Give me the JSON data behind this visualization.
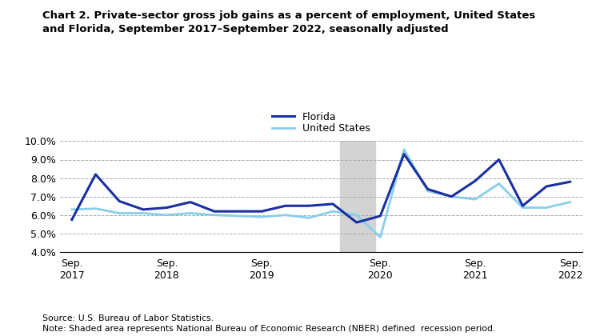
{
  "title": "Chart 2. Private-sector gross job gains as a percent of employment, United States\nand Florida, September 2017–September 2022, seasonally adjusted",
  "florida_x": [
    0,
    1,
    2,
    3,
    4,
    5,
    6,
    7,
    8,
    9,
    10,
    11,
    12,
    13,
    14,
    15,
    16,
    17,
    18,
    19,
    20,
    21
  ],
  "florida_y": [
    5.75,
    8.2,
    6.75,
    6.3,
    6.4,
    6.7,
    6.2,
    6.2,
    6.2,
    6.5,
    6.5,
    6.6,
    5.6,
    5.95,
    9.3,
    7.4,
    7.0,
    7.85,
    9.0,
    6.5,
    7.55,
    7.8
  ],
  "us_x": [
    0,
    1,
    2,
    3,
    4,
    5,
    6,
    7,
    8,
    9,
    10,
    11,
    12,
    13,
    14,
    15,
    16,
    17,
    18,
    19,
    20,
    21
  ],
  "us_y": [
    6.3,
    6.35,
    6.1,
    6.1,
    6.0,
    6.1,
    6.0,
    5.95,
    5.9,
    6.0,
    5.85,
    6.2,
    6.0,
    4.8,
    9.55,
    7.3,
    7.0,
    6.85,
    7.7,
    6.4,
    6.4,
    6.7
  ],
  "x_tick_positions": [
    0,
    4,
    8,
    13,
    17,
    21
  ],
  "x_tick_labels": [
    "Sep.\n2017",
    "Sep.\n2018",
    "Sep.\n2019",
    "Sep.\n2020",
    "Sep.\n2021",
    "Sep.\n2022"
  ],
  "xlim": [
    -0.5,
    21.5
  ],
  "ylim": [
    4.0,
    10.0
  ],
  "yticks": [
    4.0,
    5.0,
    6.0,
    7.0,
    8.0,
    9.0,
    10.0
  ],
  "florida_color": "#1a2fa0",
  "us_color": "#87ceeb",
  "recession_x_start": 11.3,
  "recession_x_end": 12.8,
  "recession_color": "#d3d3d3",
  "florida_label": "Florida",
  "us_label": "United States",
  "source_text": "Source: U.S. Bureau of Labor Statistics.",
  "note_text": "Note: Shaded area represents National Bureau of Economic Research (NBER) defined  recession period.",
  "linewidth_florida": 2.2,
  "linewidth_us": 2.0
}
